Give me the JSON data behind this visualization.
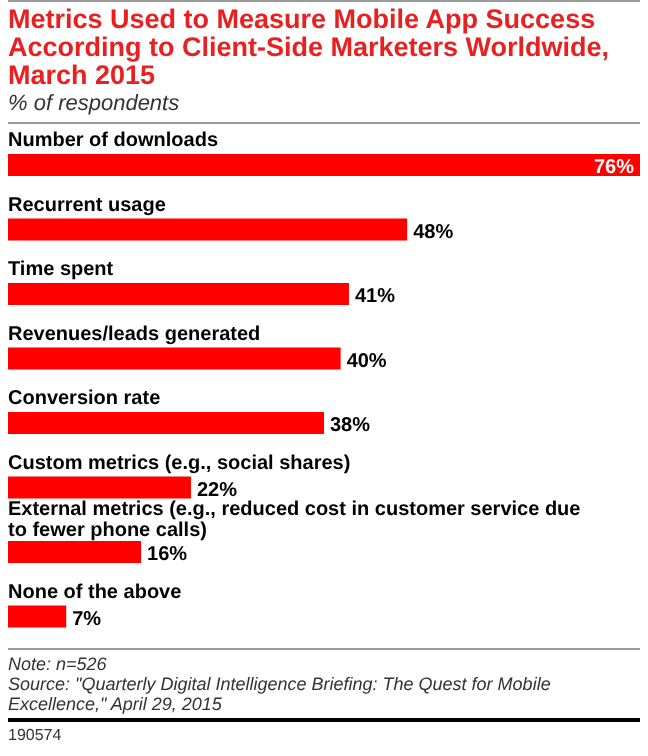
{
  "chart_data": {
    "type": "bar",
    "orientation": "horizontal",
    "title": "Metrics Used to Measure Mobile App Success According to Client-Side Marketers Worldwide, March 2015",
    "subtitle": "% of respondents",
    "categories": [
      "Number of downloads",
      "Recurrent usage",
      "Time spent",
      "Revenues/leads generated",
      "Conversion rate",
      "Custom metrics (e.g., social shares)",
      "External metrics (e.g., reduced cost in customer service due to fewer phone calls)",
      "None of the above"
    ],
    "values": [
      76,
      48,
      41,
      40,
      38,
      22,
      16,
      7
    ],
    "value_labels": [
      "76%",
      "48%",
      "41%",
      "40%",
      "38%",
      "22%",
      "16%",
      "7%"
    ],
    "color": "#ff0000",
    "annotations": [
      "Note: n=526",
      "Source: \"Quarterly Digital Intelligence Briefing: The Quest for Mobile Excellence,\" April 29, 2015",
      "190574"
    ]
  }
}
